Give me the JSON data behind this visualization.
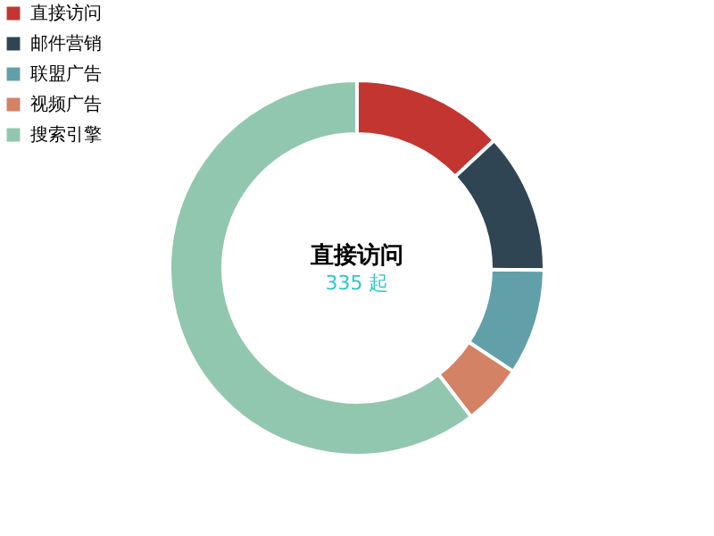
{
  "chart_data": {
    "type": "donut",
    "categories": [
      "直接访问",
      "邮件营销",
      "联盟广告",
      "视频广告",
      "搜索引擎"
    ],
    "values": [
      13.08,
      12.1,
      9.13,
      5.27,
      60.42
    ],
    "colors": [
      "#c23531",
      "#2f4554",
      "#61a0a8",
      "#d48265",
      "#91c7ae"
    ],
    "legend": "top left",
    "annotations": [
      "直接访问",
      "335 起"
    ]
  }
}
